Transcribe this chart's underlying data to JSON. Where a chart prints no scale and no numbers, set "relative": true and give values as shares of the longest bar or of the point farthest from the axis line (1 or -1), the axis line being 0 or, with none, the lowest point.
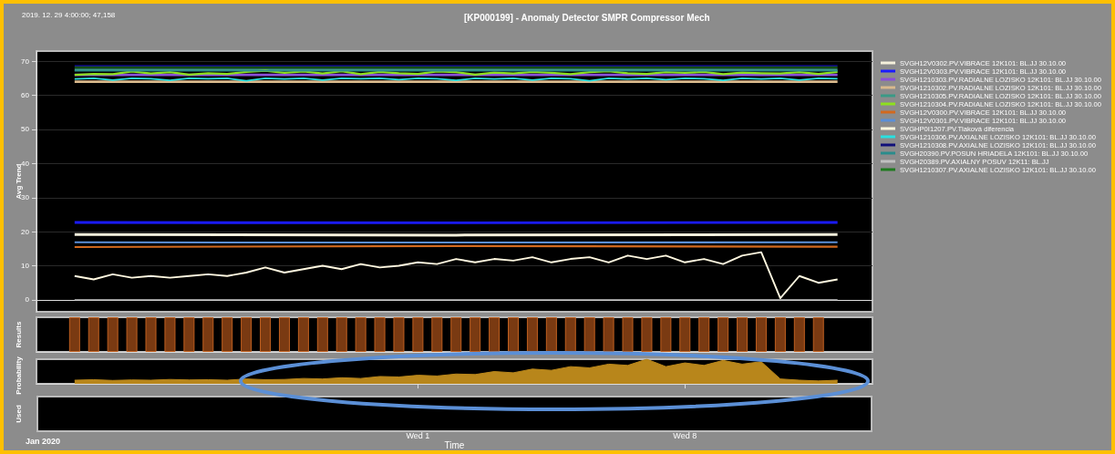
{
  "chart_data": [
    {
      "type": "line",
      "title": "[KP000199] - Anomaly Detector SMPR Compressor Mech",
      "ylabel": "Avg Trend",
      "annotations": [
        "2019. 12. 29 4:00:00; 47,158"
      ],
      "xlim": [
        "2019-12-22T00:00",
        "2020-01-12T22:00"
      ],
      "ylim": [
        -3.5,
        73
      ],
      "yticks": [
        0,
        10,
        20,
        30,
        40,
        50,
        60,
        70
      ],
      "tick_labels": "y",
      "grid": true,
      "legend": "right",
      "line_style": "solid",
      "marker": "none",
      "x": [
        "2019-12-23T00:00",
        "2019-12-23T12:00",
        "2019-12-24T00:00",
        "2019-12-24T12:00",
        "2019-12-25T00:00",
        "2019-12-25T12:00",
        "2019-12-26T00:00",
        "2019-12-26T12:00",
        "2019-12-27T00:00",
        "2019-12-27T12:00",
        "2019-12-28T00:00",
        "2019-12-28T12:00",
        "2019-12-29T00:00",
        "2019-12-29T12:00",
        "2019-12-30T00:00",
        "2019-12-30T12:00",
        "2019-12-31T00:00",
        "2019-12-31T12:00",
        "2020-01-01T00:00",
        "2020-01-01T12:00",
        "2020-01-02T00:00",
        "2020-01-02T12:00",
        "2020-01-03T00:00",
        "2020-01-03T12:00",
        "2020-01-04T00:00",
        "2020-01-04T12:00",
        "2020-01-05T00:00",
        "2020-01-05T12:00",
        "2020-01-06T00:00",
        "2020-01-06T12:00",
        "2020-01-07T00:00",
        "2020-01-07T12:00",
        "2020-01-08T00:00",
        "2020-01-08T12:00",
        "2020-01-09T00:00",
        "2020-01-09T12:00",
        "2020-01-10T00:00",
        "2020-01-10T12:00",
        "2020-01-11T00:00",
        "2020-01-11T12:00",
        "2020-01-12T00:00"
      ],
      "series": [
        {
          "name": "SVGH12V0302.PV.VIBRACE 12K101: BL.JJ 30.10.00",
          "color": "#f5f0dc",
          "x": [
            "2019-12-23T00:00",
            "2020-01-02T00:00",
            "2020-01-12T00:00"
          ],
          "values": [
            19.2,
            19,
            19.2
          ]
        },
        {
          "name": "SVGH12V0303.PV.VIBRACE 12K101: BL.JJ 30.10.00",
          "color": "#1a1aff",
          "x": [
            "2019-12-23T00:00",
            "2020-01-02T00:00",
            "2020-01-12T00:00"
          ],
          "values": [
            22.7,
            22.6,
            22.7
          ]
        },
        {
          "name": "SVGH1210303.PV.RADIALNE LOZISKO 12K101: BL.JJ 30.10.00",
          "color": "#8a4fd8",
          "x": [
            "2019-12-23T00:00",
            "2020-01-02T00:00",
            "2020-01-12T00:00"
          ],
          "values": [
            66,
            66,
            66
          ]
        },
        {
          "name": "SVGH1210302.PV.RADIALNE LOZISKO 12K101: BL.JJ 30.10.00",
          "color": "#d9b98c",
          "x": [
            "2019-12-23T00:00",
            "2020-01-02T00:00",
            "2020-01-12T00:00"
          ],
          "values": [
            64,
            64,
            64
          ]
        },
        {
          "name": "SVGH1210305.PV.RADIALNE LOZISKO 12K101: BL.JJ 30.10.00",
          "color": "#3a9a86",
          "x": [
            "2019-12-23T00:00",
            "2020-01-02T00:00",
            "2020-01-12T00:00"
          ],
          "values": [
            67.5,
            67.5,
            67.5
          ]
        },
        {
          "name": "SVGH1210304.PV.RADIALNE LOZISKO 12K101: BL.JJ 30.10.00",
          "color": "#8ee01e",
          "values": [
            66,
            66.3,
            66.2,
            67,
            66.4,
            66.8,
            66.1,
            66.5,
            66.3,
            66.9,
            67.2,
            66.6,
            67,
            66.4,
            67.1,
            66.2,
            66.9,
            66.5,
            66.3,
            67,
            66.8,
            66.1,
            66.7,
            66.4,
            66.9,
            66.6,
            66.2,
            66.8,
            67.1,
            66.5,
            66.3,
            66.8,
            66.6,
            66.9,
            66.2,
            66.7,
            66.5,
            66.4,
            66.8,
            66.3,
            66.9
          ]
        },
        {
          "name": "SVGH12V0300.PV.VIBRACE 12K101: BL.JJ 30.10.00",
          "color": "#d2691e",
          "x": [
            "2019-12-23T00:00",
            "2020-01-02T00:00",
            "2020-01-12T00:00"
          ],
          "values": [
            15.5,
            15.8,
            15.6
          ]
        },
        {
          "name": "SVGH12V0301.PV.VIBRACE 12K101: BL.JJ 30.10.00",
          "color": "#5b8fd6",
          "x": [
            "2019-12-23T00:00",
            "2020-01-02T00:00",
            "2020-01-12T00:00"
          ],
          "values": [
            16.9,
            16.8,
            16.9
          ]
        },
        {
          "name": "SVGHP0I1207.PV.Tlaková diferencia",
          "color": "#fff8e0",
          "values": [
            7,
            6,
            7.5,
            6.5,
            7,
            6.5,
            7,
            7.5,
            7,
            8,
            9.5,
            8,
            9,
            10,
            9,
            10.5,
            9.5,
            10,
            11,
            10.5,
            12,
            11,
            12,
            11.5,
            12.5,
            11,
            12,
            12.5,
            11,
            13,
            12,
            13,
            11,
            12,
            10.5,
            13,
            14,
            0.5,
            7,
            5,
            6
          ]
        },
        {
          "name": "SVGH1210306.PV.AXIALNE LOZISKO 12K101: BL.JJ 30.10.00",
          "color": "#29e0e0",
          "values": [
            64.8,
            65,
            64.5,
            65,
            64.9,
            64.4,
            65,
            64.9,
            65,
            64.3,
            65,
            64.8,
            65,
            64.5,
            65,
            64.9,
            65,
            64.6,
            65,
            64.9,
            64.4,
            65,
            64.8,
            65,
            64.5,
            65,
            64.9,
            64.3,
            65,
            64.8,
            65,
            64.6,
            65,
            64.9,
            64.4,
            65,
            64.8,
            65,
            64.5,
            65,
            64.9
          ]
        },
        {
          "name": "SVGH1210308.PV.AXIALNE LOZISKO 12K101: BL.JJ 30.10.00",
          "color": "#10107a",
          "x": [
            "2019-12-23T00:00",
            "2020-01-02T00:00",
            "2020-01-12T00:00"
          ],
          "values": [
            68.7,
            68.7,
            68.7
          ]
        },
        {
          "name": "SVGH20390.PV.POSUN HRIADELA 12K101: BL.JJ 30.10.00",
          "color": "#2a8c8c",
          "x": [
            "2019-12-23T00:00",
            "2020-01-02T00:00",
            "2020-01-12T00:00"
          ],
          "values": [
            67.2,
            67.2,
            67.2
          ]
        },
        {
          "name": "SVGH20389.PV.AXIALNY POSUV 12K11: BL.JJ",
          "color": "#c0c0c0",
          "x": [
            "2019-12-23T00:00",
            "2020-01-02T00:00",
            "2020-01-12T00:00"
          ],
          "values": [
            0,
            0,
            0
          ]
        },
        {
          "name": "SVGH1210307.PV.AXIALNE LOZISKO 12K101: BL.JJ 30.10.00",
          "color": "#1f7a1f",
          "x": [
            "2019-12-23T00:00",
            "2020-01-02T00:00",
            "2020-01-12T00:00"
          ],
          "values": [
            68.2,
            68.2,
            68.2
          ]
        }
      ]
    },
    {
      "type": "bar",
      "ylabel": "Results",
      "relative": true,
      "tick_labels": false,
      "xlim": [
        "2019-12-22T00:00",
        "2020-01-12T22:00"
      ],
      "color": "#7a3a12",
      "x": [
        "2019-12-23T00:00",
        "2019-12-23T12:00",
        "2019-12-24T00:00",
        "2019-12-24T12:00",
        "2019-12-25T00:00",
        "2019-12-25T12:00",
        "2019-12-26T00:00",
        "2019-12-26T12:00",
        "2019-12-27T00:00",
        "2019-12-27T12:00",
        "2019-12-28T00:00",
        "2019-12-28T12:00",
        "2019-12-29T00:00",
        "2019-12-29T12:00",
        "2019-12-30T00:00",
        "2019-12-30T12:00",
        "2019-12-31T00:00",
        "2019-12-31T12:00",
        "2020-01-01T00:00",
        "2020-01-01T12:00",
        "2020-01-02T00:00",
        "2020-01-02T12:00",
        "2020-01-03T00:00",
        "2020-01-03T12:00",
        "2020-01-04T00:00",
        "2020-01-04T12:00",
        "2020-01-05T00:00",
        "2020-01-05T12:00",
        "2020-01-06T00:00",
        "2020-01-06T12:00",
        "2020-01-07T00:00",
        "2020-01-07T12:00",
        "2020-01-08T00:00",
        "2020-01-08T12:00",
        "2020-01-09T00:00",
        "2020-01-09T12:00",
        "2020-01-10T00:00",
        "2020-01-10T12:00",
        "2020-01-11T00:00",
        "2020-01-11T12:00"
      ],
      "values": [
        1,
        1,
        1,
        1,
        1,
        1,
        1,
        1,
        1,
        1,
        1,
        1,
        1,
        1,
        1,
        1,
        1,
        1,
        1,
        1,
        1,
        1,
        1,
        1,
        1,
        1,
        1,
        1,
        1,
        1,
        1,
        1,
        1,
        1,
        1,
        1,
        1,
        1,
        1,
        1
      ]
    },
    {
      "type": "area",
      "ylabel": "Probability",
      "xlabel": "Time",
      "annotations": [
        "Used",
        "Jan 2020"
      ],
      "relative": true,
      "tick_labels": "x",
      "xticks": [
        {
          "value": "2020-01-01",
          "label": "Wed 1"
        },
        {
          "value": "2020-01-08",
          "label": "Wed 8"
        }
      ],
      "xlim": [
        "2019-12-22T00:00",
        "2020-01-12T22:00"
      ],
      "color": "#b8861b",
      "x": [
        "2019-12-23T00:00",
        "2019-12-23T12:00",
        "2019-12-24T00:00",
        "2019-12-24T12:00",
        "2019-12-25T00:00",
        "2019-12-25T12:00",
        "2019-12-26T00:00",
        "2019-12-26T12:00",
        "2019-12-27T00:00",
        "2019-12-27T12:00",
        "2019-12-28T00:00",
        "2019-12-28T12:00",
        "2019-12-29T00:00",
        "2019-12-29T12:00",
        "2019-12-30T00:00",
        "2019-12-30T12:00",
        "2019-12-31T00:00",
        "2019-12-31T12:00",
        "2020-01-01T00:00",
        "2020-01-01T12:00",
        "2020-01-02T00:00",
        "2020-01-02T12:00",
        "2020-01-03T00:00",
        "2020-01-03T12:00",
        "2020-01-04T00:00",
        "2020-01-04T12:00",
        "2020-01-05T00:00",
        "2020-01-05T12:00",
        "2020-01-06T00:00",
        "2020-01-06T12:00",
        "2020-01-07T00:00",
        "2020-01-07T12:00",
        "2020-01-08T00:00",
        "2020-01-08T12:00",
        "2020-01-09T00:00",
        "2020-01-09T12:00",
        "2020-01-10T00:00",
        "2020-01-10T12:00",
        "2020-01-11T00:00",
        "2020-01-11T12:00",
        "2020-01-12T00:00"
      ],
      "values": [
        0.15,
        0.17,
        0.14,
        0.16,
        0.15,
        0.18,
        0.16,
        0.17,
        0.15,
        0.2,
        0.17,
        0.18,
        0.22,
        0.2,
        0.25,
        0.22,
        0.3,
        0.28,
        0.35,
        0.32,
        0.4,
        0.38,
        0.5,
        0.45,
        0.6,
        0.55,
        0.7,
        0.65,
        0.8,
        0.75,
        1,
        0.7,
        0.85,
        0.75,
        0.95,
        0.8,
        0.9,
        0.2,
        0.15,
        0.12,
        0.15
      ]
    }
  ]
}
